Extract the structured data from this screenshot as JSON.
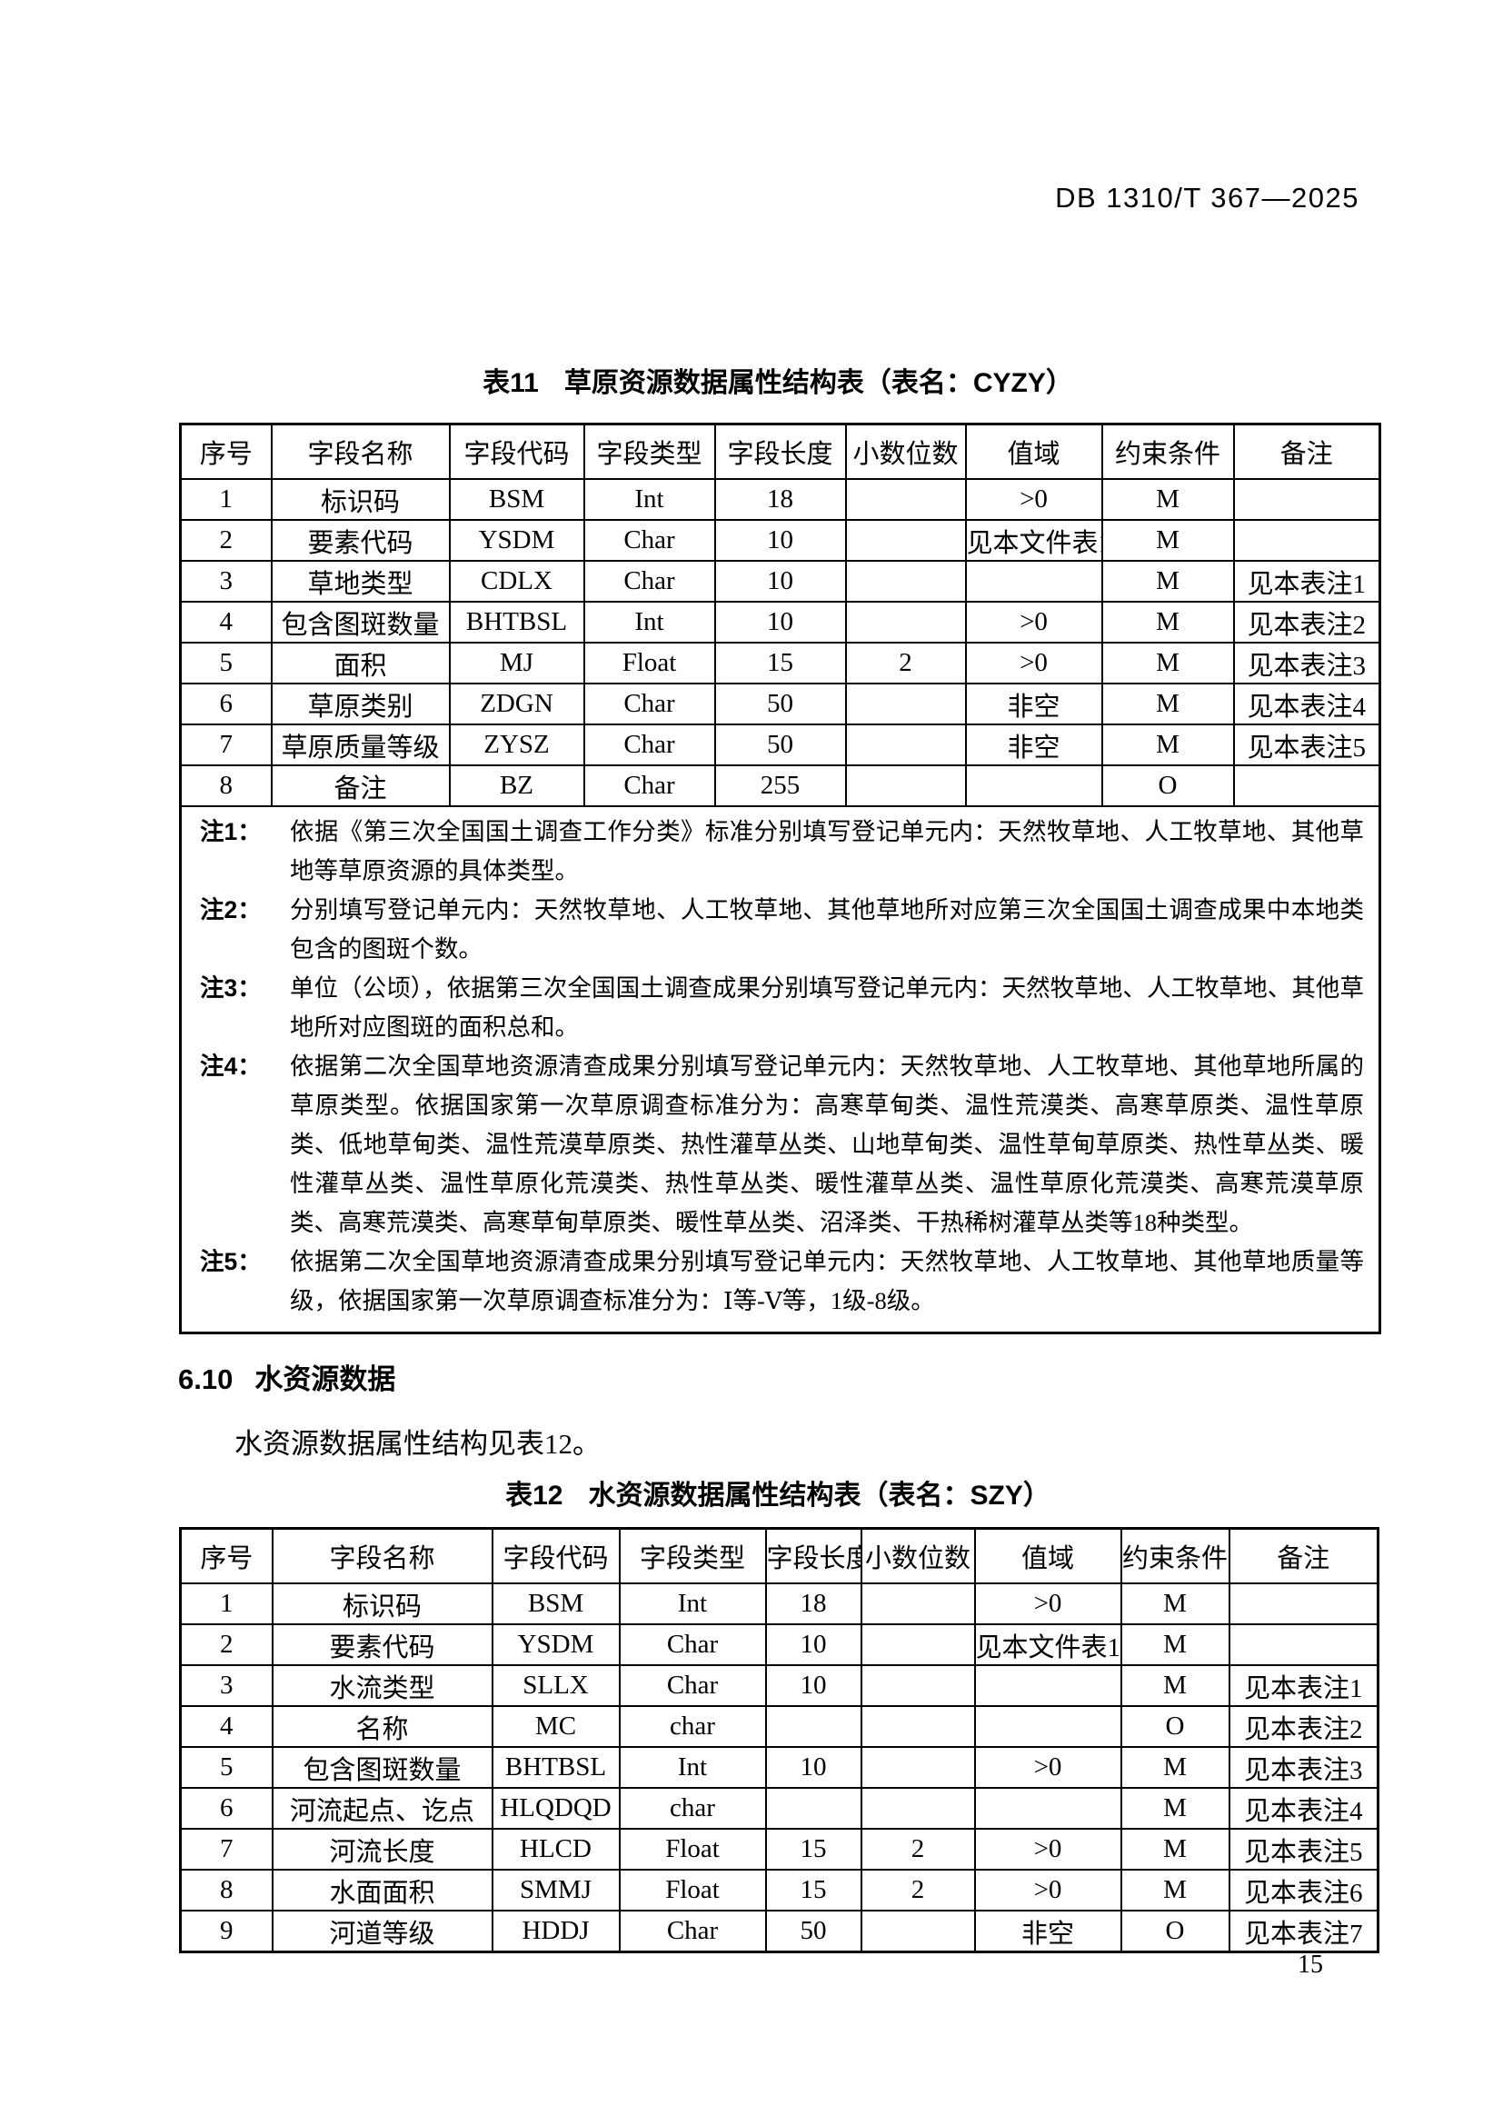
{
  "header": {
    "doc_code": "DB 1310/T 367—2025"
  },
  "table11": {
    "caption_label": "表11",
    "caption_title": "草原资源数据属性结构表（表名：CYZY）",
    "columns": [
      "序号",
      "字段名称",
      "字段代码",
      "字段类型",
      "字段长度",
      "小数位数",
      "值域",
      "约束条件",
      "备注"
    ],
    "rows": [
      [
        "1",
        "标识码",
        "BSM",
        "Int",
        "18",
        "",
        ">0",
        "M",
        ""
      ],
      [
        "2",
        "要素代码",
        "YSDM",
        "Char",
        "10",
        "",
        "见本文件表1",
        "M",
        ""
      ],
      [
        "3",
        "草地类型",
        "CDLX",
        "Char",
        "10",
        "",
        "",
        "M",
        "见本表注1"
      ],
      [
        "4",
        "包含图斑数量",
        "BHTBSL",
        "Int",
        "10",
        "",
        ">0",
        "M",
        "见本表注2"
      ],
      [
        "5",
        "面积",
        "MJ",
        "Float",
        "15",
        "2",
        ">0",
        "M",
        "见本表注3"
      ],
      [
        "6",
        "草原类别",
        "ZDGN",
        "Char",
        "50",
        "",
        "非空",
        "M",
        "见本表注4"
      ],
      [
        "7",
        "草原质量等级",
        "ZYSZ",
        "Char",
        "50",
        "",
        "非空",
        "M",
        "见本表注5"
      ],
      [
        "8",
        "备注",
        "BZ",
        "Char",
        "255",
        "",
        "",
        "O",
        ""
      ]
    ],
    "notes": [
      {
        "label": "注1：",
        "text": "依据《第三次全国国土调查工作分类》标准分别填写登记单元内：天然牧草地、人工牧草地、其他草地等草原资源的具体类型。"
      },
      {
        "label": "注2：",
        "text": "分别填写登记单元内：天然牧草地、人工牧草地、其他草地所对应第三次全国国土调查成果中本地类包含的图斑个数。"
      },
      {
        "label": "注3：",
        "text": "单位（公顷），依据第三次全国国土调查成果分别填写登记单元内：天然牧草地、人工牧草地、其他草地所对应图斑的面积总和。"
      },
      {
        "label": "注4：",
        "text": "依据第二次全国草地资源清查成果分别填写登记单元内：天然牧草地、人工牧草地、其他草地所属的草原类型。依据国家第一次草原调查标准分为：高寒草甸类、温性荒漠类、高寒草原类、温性草原类、低地草甸类、温性荒漠草原类、热性灌草丛类、山地草甸类、温性草甸草原类、热性草丛类、暖性灌草丛类、温性草原化荒漠类、热性草丛类、暖性灌草丛类、温性草原化荒漠类、高寒荒漠草原类、高寒荒漠类、高寒草甸草原类、暖性草丛类、沼泽类、干热稀树灌草丛类等18种类型。"
      },
      {
        "label": "注5：",
        "text": "依据第二次全国草地资源清查成果分别填写登记单元内：天然牧草地、人工牧草地、其他草地质量等级，依据国家第一次草原调查标准分为：Ⅰ等-Ⅴ等，1级-8级。"
      }
    ]
  },
  "section": {
    "number": "6.10",
    "title": "水资源数据",
    "paragraph": "水资源数据属性结构见表12。"
  },
  "table12": {
    "caption_label": "表12",
    "caption_title": "水资源数据属性结构表（表名：SZY）",
    "columns": [
      "序号",
      "字段名称",
      "字段代码",
      "字段类型",
      "字段长度",
      "小数位数",
      "值域",
      "约束条件",
      "备注"
    ],
    "rows": [
      [
        "1",
        "标识码",
        "BSM",
        "Int",
        "18",
        "",
        ">0",
        "M",
        ""
      ],
      [
        "2",
        "要素代码",
        "YSDM",
        "Char",
        "10",
        "",
        "见本文件表1",
        "M",
        ""
      ],
      [
        "3",
        "水流类型",
        "SLLX",
        "Char",
        "10",
        "",
        "",
        "M",
        "见本表注1"
      ],
      [
        "4",
        "名称",
        "MC",
        "char",
        "",
        "",
        "",
        "O",
        "见本表注2"
      ],
      [
        "5",
        "包含图斑数量",
        "BHTBSL",
        "Int",
        "10",
        "",
        ">0",
        "M",
        "见本表注3"
      ],
      [
        "6",
        "河流起点、讫点",
        "HLQDQD",
        "char",
        "",
        "",
        "",
        "M",
        "见本表注4"
      ],
      [
        "7",
        "河流长度",
        "HLCD",
        "Float",
        "15",
        "2",
        ">0",
        "M",
        "见本表注5"
      ],
      [
        "8",
        "水面面积",
        "SMMJ",
        "Float",
        "15",
        "2",
        ">0",
        "M",
        "见本表注6"
      ],
      [
        "9",
        "河道等级",
        "HDDJ",
        "Char",
        "50",
        "",
        "非空",
        "O",
        "见本表注7"
      ]
    ]
  },
  "footer": {
    "page_number": "15"
  }
}
